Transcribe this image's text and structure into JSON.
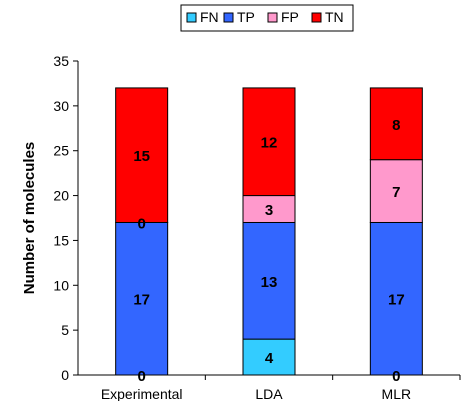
{
  "chart_data": {
    "type": "bar",
    "stacked": true,
    "categories": [
      "Experimental",
      "LDA",
      "MLR"
    ],
    "series": [
      {
        "name": "FN",
        "color": "#33CCFF",
        "values": [
          0,
          4,
          0
        ]
      },
      {
        "name": "TP",
        "color": "#3366FF",
        "values": [
          17,
          13,
          17
        ]
      },
      {
        "name": "FP",
        "color": "#FF99CC",
        "values": [
          0,
          3,
          7
        ]
      },
      {
        "name": "TN",
        "color": "#FF0000",
        "values": [
          15,
          12,
          8
        ]
      }
    ],
    "title": "",
    "xlabel": "",
    "ylabel": "Number of molecules",
    "ylim": [
      0,
      35
    ],
    "yticks": [
      0,
      5,
      10,
      15,
      20,
      25,
      30,
      35
    ],
    "grid": false,
    "legend_position": "top"
  }
}
